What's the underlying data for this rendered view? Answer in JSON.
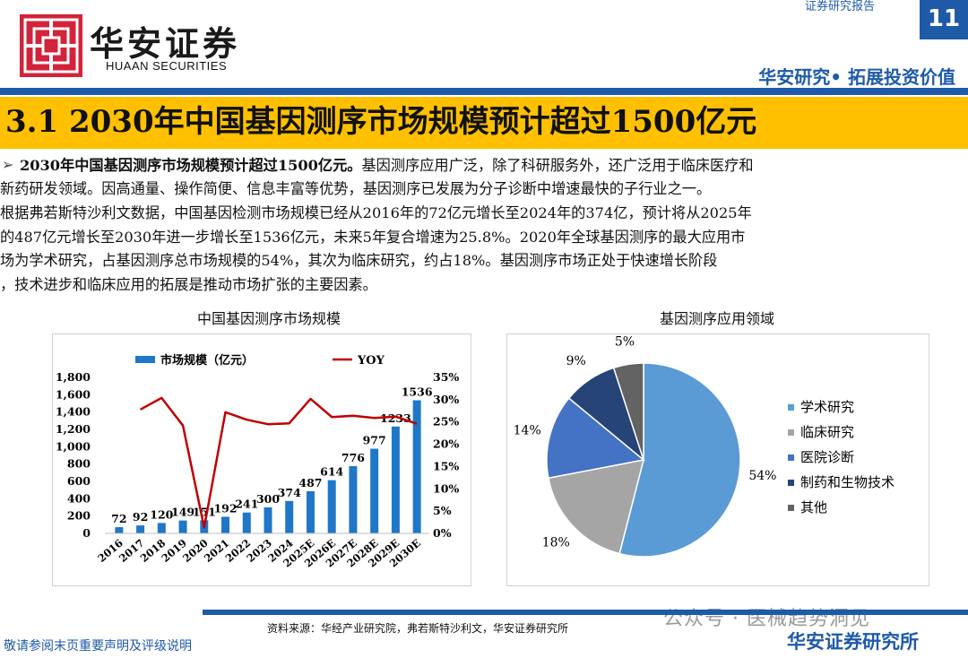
{
  "header": {
    "brand_cn": "华安证券",
    "brand_en": "HUAAN SECURITIES",
    "report_type": "证券研究报告",
    "page_number": "11",
    "tagline": "华安研究• 拓展投资价值"
  },
  "section": {
    "title": "3.1 2030年中国基因测序市场规模预计超过1500亿元"
  },
  "body": {
    "bullet": "➢",
    "lead": "2030年中国基因测序市场规模预计超过1500亿元。",
    "line1_rest": "基因测序应用广泛，除了科研服务外，还广泛用于临床医疗和",
    "continuation": "新药研发领域。因高通量、操作简便、信息丰富等优势，基因测序已发展为分子诊断中增速最快的子行业之一。\n根据弗若斯特沙利文数据，中国基因检测市场规模已经从2016年的72亿元增长至2024年的374亿，预计将从2025年\n的487亿元增长至2030年进一步增长至1536亿元，未来5年复合增速为25.8%。2020年全球基因测序的最大应用市\n场为学术研究，占基因测序总市场规模的54%，其次为临床研究，约占18%。基因测序市场正处于快速增长阶段\n，技术进步和临床应用的拓展是推动市场扩张的主要因素。"
  },
  "chart_titles": {
    "left": "中国基因测序市场规模",
    "right": "基因测序应用领域"
  },
  "chart_data": [
    {
      "type": "bar",
      "title": "中国基因测序市场规模",
      "categories": [
        "2016",
        "2017",
        "2018",
        "2019",
        "2020",
        "2021",
        "2022",
        "2023",
        "2024",
        "2025E",
        "2026E",
        "2027E",
        "2028E",
        "2029E",
        "2030E"
      ],
      "series": [
        {
          "name": "市场规模（亿元）",
          "axis": "left",
          "type": "bar",
          "color": "#1f77c8",
          "values": [
            72,
            92,
            120,
            149,
            151,
            192,
            241,
            300,
            374,
            487,
            614,
            776,
            977,
            1233,
            1536
          ]
        },
        {
          "name": "YOY",
          "axis": "right",
          "type": "line",
          "color": "#c00000",
          "values": [
            null,
            27.8,
            30.4,
            24.2,
            1.3,
            27.2,
            25.5,
            24.5,
            24.7,
            30.2,
            26.1,
            26.4,
            25.9,
            26.2,
            24.6
          ]
        }
      ],
      "ylim_left": [
        0,
        1800
      ],
      "yticks_left": [
        "0",
        "200",
        "400",
        "600",
        "800",
        "1,000",
        "1,200",
        "1,400",
        "1,600",
        "1,800"
      ],
      "ylim_right": [
        0,
        35
      ],
      "yticks_right": [
        "0%",
        "5%",
        "10%",
        "15%",
        "20%",
        "25%",
        "30%",
        "35%"
      ],
      "legend": [
        "市场规模（亿元）",
        "YOY"
      ],
      "legend_position": "top"
    },
    {
      "type": "pie",
      "title": "基因测序应用领域",
      "labels": [
        "学术研究",
        "临床研究",
        "医院诊断",
        "制药和生物技术",
        "其他"
      ],
      "values": [
        54,
        18,
        14,
        9,
        5
      ],
      "value_labels": [
        "54%",
        "18%",
        "14%",
        "9%",
        "5%"
      ],
      "colors": [
        "#5b9bd5",
        "#a5a5a5",
        "#4472c4",
        "#264478",
        "#636363"
      ],
      "legend_position": "right"
    }
  ],
  "footer": {
    "source": "资料来源：华经产业研究院，弗若斯特沙利文，华安证券研究所",
    "disclaimer": "敬请参阅末页重要声明及评级说明",
    "brand": "华安证券研究所",
    "watermark": "公众号 · 医械趋势洞见"
  }
}
